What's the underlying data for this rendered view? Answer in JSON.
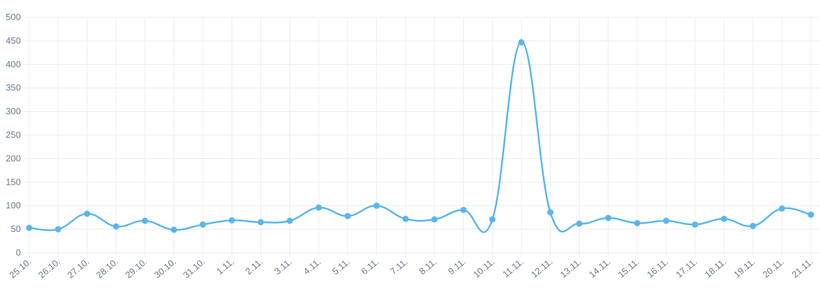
{
  "chart_data": {
    "type": "line",
    "categories": [
      "25.10.",
      "26.10.",
      "27.10.",
      "28.10.",
      "29.10.",
      "30.10.",
      "31.10.",
      "1.11.",
      "2.11.",
      "3.11.",
      "4.11.",
      "5.11.",
      "6.11.",
      "7.11.",
      "8.11.",
      "9.11.",
      "10.11.",
      "11.11.",
      "12.11.",
      "13.11.",
      "14.11.",
      "15.11.",
      "16.11.",
      "17.11.",
      "18.11.",
      "19.11.",
      "20.11.",
      "21.11."
    ],
    "values": [
      53,
      50,
      83,
      56,
      68,
      49,
      60,
      69,
      65,
      68,
      96,
      78,
      100,
      72,
      71,
      91,
      71,
      447,
      86,
      62,
      74,
      63,
      68,
      60,
      72,
      57,
      94,
      81
    ],
    "color": "#5ab6ee",
    "ylim": [
      0,
      500
    ],
    "yticks": [
      0,
      50,
      100,
      150,
      200,
      250,
      300,
      350,
      400,
      450,
      500
    ],
    "grid": true
  }
}
